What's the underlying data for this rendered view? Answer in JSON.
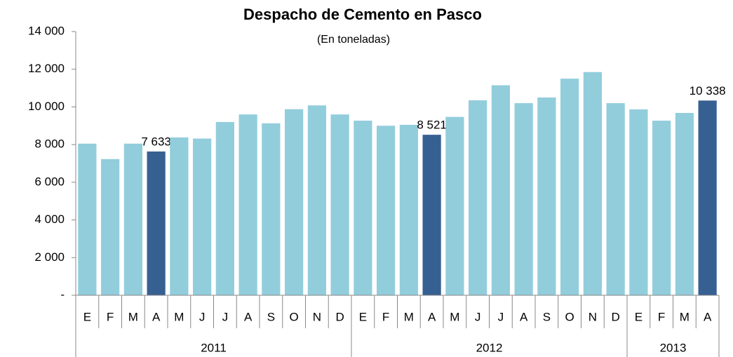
{
  "chart_data": {
    "type": "bar",
    "title": "Despacho de Cemento en Pasco",
    "subtitle": "(En toneladas)",
    "categories": [
      "E",
      "F",
      "M",
      "A",
      "M",
      "J",
      "J",
      "A",
      "S",
      "O",
      "N",
      "D",
      "E",
      "F",
      "M",
      "A",
      "M",
      "J",
      "J",
      "A",
      "S",
      "O",
      "N",
      "D",
      "E",
      "F",
      "M",
      "A"
    ],
    "groups": [
      {
        "label": "2011",
        "size": 12
      },
      {
        "label": "2012",
        "size": 12
      },
      {
        "label": "2013",
        "size": 4
      }
    ],
    "values": [
      8050,
      7230,
      8050,
      7633,
      8380,
      8320,
      9200,
      9600,
      9130,
      9880,
      10080,
      9600,
      9270,
      9000,
      9050,
      8521,
      9470,
      10350,
      11150,
      10200,
      10500,
      11500,
      11850,
      10200,
      9870,
      9270,
      9680,
      10338
    ],
    "value_labels": [
      null,
      null,
      null,
      "7 633",
      null,
      null,
      null,
      null,
      null,
      null,
      null,
      null,
      null,
      null,
      null,
      "8 521",
      null,
      null,
      null,
      null,
      null,
      null,
      null,
      null,
      null,
      null,
      null,
      "10 338"
    ],
    "colors": [
      "#92cddc",
      "#92cddc",
      "#92cddc",
      "#366092",
      "#92cddc",
      "#92cddc",
      "#92cddc",
      "#92cddc",
      "#92cddc",
      "#92cddc",
      "#92cddc",
      "#92cddc",
      "#92cddc",
      "#92cddc",
      "#92cddc",
      "#366092",
      "#92cddc",
      "#92cddc",
      "#92cddc",
      "#92cddc",
      "#92cddc",
      "#92cddc",
      "#92cddc",
      "#92cddc",
      "#92cddc",
      "#92cddc",
      "#92cddc",
      "#366092"
    ],
    "ylim": [
      0,
      14000
    ],
    "yticks": [
      {
        "value": 0,
        "label": "-"
      },
      {
        "value": 2000,
        "label": "2 000"
      },
      {
        "value": 4000,
        "label": "4 000"
      },
      {
        "value": 6000,
        "label": "6 000"
      },
      {
        "value": 8000,
        "label": "8 000"
      },
      {
        "value": 10000,
        "label": "10 000"
      },
      {
        "value": 12000,
        "label": "12 000"
      },
      {
        "value": 14000,
        "label": "14 000"
      }
    ]
  }
}
